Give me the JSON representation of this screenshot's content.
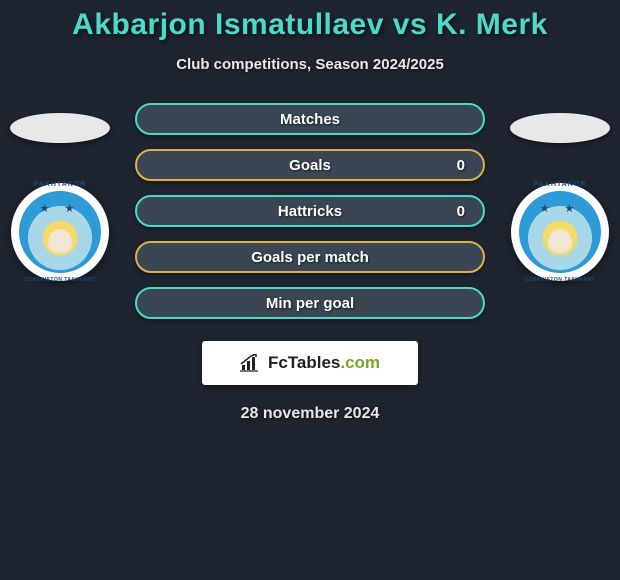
{
  "title": "Akbarjon Ismatullaev vs K. Merk",
  "subtitle": "Club competitions, Season 2024/2025",
  "date": "28 november 2024",
  "brand": {
    "name": "FcTables",
    "suffix": ".com"
  },
  "club": {
    "name_top": "PAKHTAKOR",
    "name_bottom": "UZBEKISTON TASHKENT"
  },
  "bars": [
    {
      "label": "Matches",
      "right": "",
      "border": "#4dd9c5"
    },
    {
      "label": "Goals",
      "right": "0",
      "border": "#e0b048"
    },
    {
      "label": "Hattricks",
      "right": "0",
      "border": "#4dd9c5"
    },
    {
      "label": "Goals per match",
      "right": "",
      "border": "#e0b048"
    },
    {
      "label": "Min per goal",
      "right": "",
      "border": "#4dd9c5"
    }
  ],
  "colors": {
    "background": "#1e2530",
    "title": "#4dd9c5",
    "bar_bg": "#3a4654",
    "text": "#e8e8e8"
  }
}
